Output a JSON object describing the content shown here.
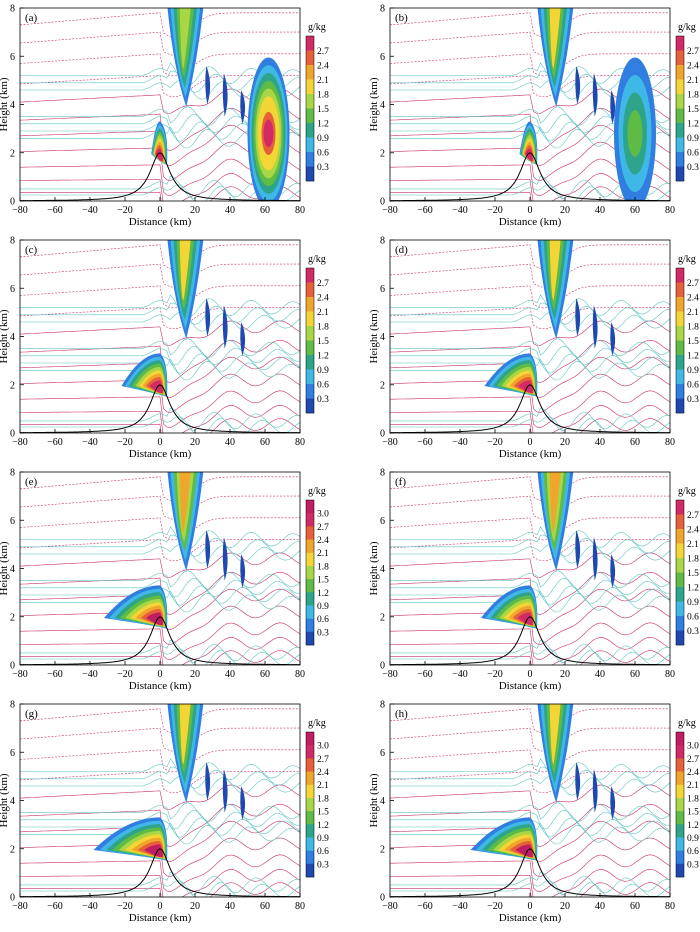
{
  "figure": {
    "xlabel": "Distance (km)",
    "ylabel": "Height (km)",
    "colorbar_unit": "g/kg",
    "xticks": [
      -80,
      -60,
      -40,
      -20,
      0,
      20,
      40,
      60,
      80
    ],
    "yticks": [
      0,
      2,
      4,
      6,
      8
    ],
    "xlim": [
      -80,
      80
    ],
    "ylim": [
      0,
      8
    ],
    "colors": {
      "temp_contour": "#c8306a",
      "theta_contour": "#5fc6c2",
      "terrain": "#000000",
      "axes": "#000000"
    },
    "palette_27": [
      "#1f49b0",
      "#2f7ee0",
      "#3fb8e8",
      "#2ea58a",
      "#5dbb46",
      "#a8d645",
      "#f4d536",
      "#f0a52c",
      "#e6603a",
      "#d12a67"
    ],
    "palette_30": [
      "#1f49b0",
      "#2f7ee0",
      "#3fb8e8",
      "#2ea58a",
      "#5dbb46",
      "#a8d645",
      "#f4d536",
      "#f0a52c",
      "#e6603a",
      "#d12a67",
      "#c01d63"
    ]
  },
  "chart_data": [
    {
      "type": "heatmap",
      "panel_label": "(a)",
      "colorbar_ticks": [
        0.3,
        0.6,
        0.9,
        1.2,
        1.5,
        1.8,
        2.1,
        2.4,
        2.7
      ],
      "peak_orographic": 2.7,
      "peak_plume": 1.5,
      "windward_extent_km": -5,
      "secondary_peak_x_km": 62,
      "secondary_peak_value": 2.7
    },
    {
      "type": "heatmap",
      "panel_label": "(b)",
      "colorbar_ticks": [
        0.3,
        0.6,
        0.9,
        1.2,
        1.5,
        1.8,
        2.1,
        2.4,
        2.7
      ],
      "peak_orographic": 2.7,
      "peak_plume": 1.8,
      "windward_extent_km": -6,
      "secondary_peak_x_km": 60,
      "secondary_peak_value": 1.2
    },
    {
      "type": "heatmap",
      "panel_label": "(c)",
      "colorbar_ticks": [
        0.3,
        0.6,
        0.9,
        1.2,
        1.5,
        1.8,
        2.1,
        2.4,
        2.7
      ],
      "peak_orographic": 2.7,
      "peak_plume": 1.8,
      "windward_extent_km": -22,
      "secondary_peak_x_km": 0,
      "secondary_peak_value": 0
    },
    {
      "type": "heatmap",
      "panel_label": "(d)",
      "colorbar_ticks": [
        0.3,
        0.6,
        0.9,
        1.2,
        1.5,
        1.8,
        2.1,
        2.4,
        2.7
      ],
      "peak_orographic": 2.7,
      "peak_plume": 1.8,
      "windward_extent_km": -26,
      "secondary_peak_x_km": 0,
      "secondary_peak_value": 0
    },
    {
      "type": "heatmap",
      "panel_label": "(e)",
      "colorbar_ticks": [
        0.3,
        0.6,
        0.9,
        1.2,
        1.5,
        1.8,
        2.1,
        2.4,
        2.7,
        3.0
      ],
      "peak_orographic": 3.0,
      "peak_plume": 2.1,
      "windward_extent_km": -32,
      "secondary_peak_x_km": 0,
      "secondary_peak_value": 0
    },
    {
      "type": "heatmap",
      "panel_label": "(f)",
      "colorbar_ticks": [
        0.3,
        0.6,
        0.9,
        1.2,
        1.5,
        1.8,
        2.1,
        2.4,
        2.7
      ],
      "peak_orographic": 2.7,
      "peak_plume": 2.1,
      "windward_extent_km": -28,
      "secondary_peak_x_km": 0,
      "secondary_peak_value": 0
    },
    {
      "type": "heatmap",
      "panel_label": "(g)",
      "colorbar_ticks": [
        0.3,
        0.6,
        0.9,
        1.2,
        1.5,
        1.8,
        2.1,
        2.4,
        2.7,
        3.0
      ],
      "peak_orographic": 3.0,
      "peak_plume": 1.8,
      "windward_extent_km": -38,
      "secondary_peak_x_km": 0,
      "secondary_peak_value": 0
    },
    {
      "type": "heatmap",
      "panel_label": "(h)",
      "colorbar_ticks": [
        0.3,
        0.6,
        0.9,
        1.2,
        1.5,
        1.8,
        2.1,
        2.4,
        2.7,
        3.0
      ],
      "peak_orographic": 3.0,
      "peak_plume": 1.8,
      "windward_extent_km": -34,
      "secondary_peak_x_km": 0,
      "secondary_peak_value": 0
    }
  ]
}
